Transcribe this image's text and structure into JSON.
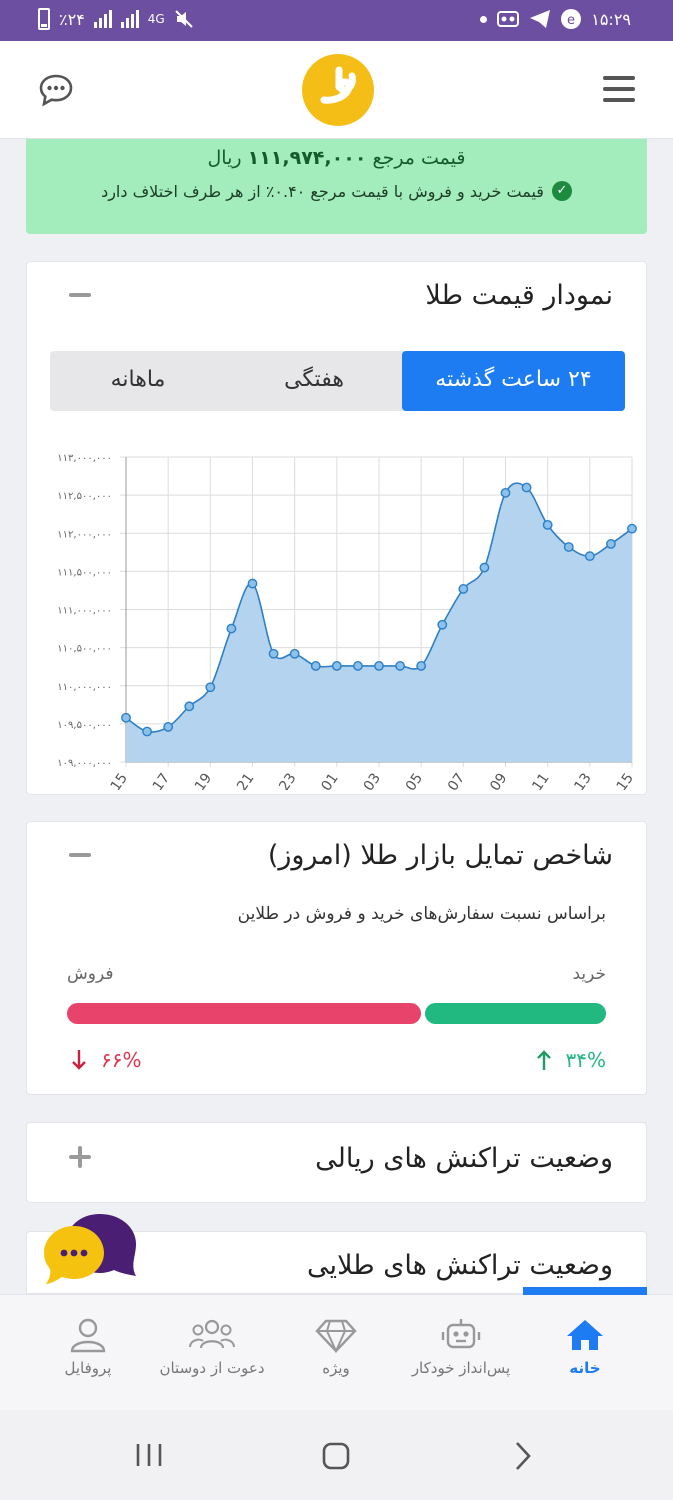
{
  "status_bar": {
    "time": "۱۵:۲۹",
    "battery": "٪۲۴",
    "network": "4G"
  },
  "header": {
    "left_icon": "chat-icon",
    "right_icon": "menu-icon",
    "logo_icon": "app-logo"
  },
  "banner": {
    "price_label": "قیمت مرجع",
    "price_value": "۱۱۱,۹۷۴,۰۰۰",
    "price_unit": "ریال",
    "note": "قیمت خرید و فروش با قیمت مرجع ۰.۴۰٪ از هر طرف اختلاف دارد"
  },
  "gold_chart_card": {
    "title": "نمودار قیمت طلا",
    "tabs": [
      "۲۴ ساعت گذشته",
      "هفتگی",
      "ماهانه"
    ],
    "active_tab": 0
  },
  "chart_data": {
    "type": "area",
    "title": "",
    "xlabel": "",
    "ylabel": "",
    "ylim": [
      109000000,
      113000000
    ],
    "y_ticks": [
      "۱۰۹,۰۰۰,۰۰۰",
      "۱۰۹,۵۰۰,۰۰۰",
      "۱۱۰,۰۰۰,۰۰۰",
      "۱۱۰,۵۰۰,۰۰۰",
      "۱۱۱,۰۰۰,۰۰۰",
      "۱۱۱,۵۰۰,۰۰۰",
      "۱۱۲,۰۰۰,۰۰۰",
      "۱۱۲,۵۰۰,۰۰۰",
      "۱۱۳,۰۰۰,۰۰۰"
    ],
    "y_tick_values": [
      109000000,
      109500000,
      110000000,
      110500000,
      111000000,
      111500000,
      112000000,
      112500000,
      113000000
    ],
    "x_labels": [
      "15",
      "17",
      "19",
      "21",
      "23",
      "01",
      "03",
      "05",
      "07",
      "09",
      "11",
      "13",
      "15"
    ],
    "values": [
      109580000,
      109400000,
      109460000,
      109730000,
      109980000,
      110750000,
      111340000,
      110420000,
      110420000,
      110260000,
      110260000,
      110260000,
      110260000,
      110260000,
      110260000,
      110800000,
      111270000,
      111550000,
      112530000,
      112600000,
      112110000,
      111820000,
      111700000,
      111860000,
      112060000
    ],
    "grid": true,
    "fill_color": "#b3d3ef",
    "line_color": "#2d7fc6"
  },
  "sentiment_card": {
    "title": "شاخص تمایل بازار طلا (امروز)",
    "subtitle": "براساس نسبت سفارش‌های خرید و فروش در طلاین",
    "buy_label": "خرید",
    "sell_label": "فروش",
    "buy_percent": "۳۴%",
    "sell_percent": "۶۶%",
    "buy_fraction": 0.34,
    "sell_fraction": 0.66,
    "buy_color": "#22b981",
    "sell_color": "#e8436b"
  },
  "rial_card": {
    "title": "وضعیت تراکنش های ریالی"
  },
  "gold_tx_card": {
    "title": "وضعیت تراکنش های طلایی"
  },
  "bottom_nav": {
    "items": [
      {
        "label": "خانه",
        "icon": "home-icon"
      },
      {
        "label": "پس‌انداز خودکار",
        "icon": "robot-icon"
      },
      {
        "label": "ویژه",
        "icon": "diamond-icon"
      },
      {
        "label": "دعوت از دوستان",
        "icon": "users-icon"
      },
      {
        "label": "پروفایل",
        "icon": "user-icon"
      }
    ],
    "active_index": 0
  }
}
